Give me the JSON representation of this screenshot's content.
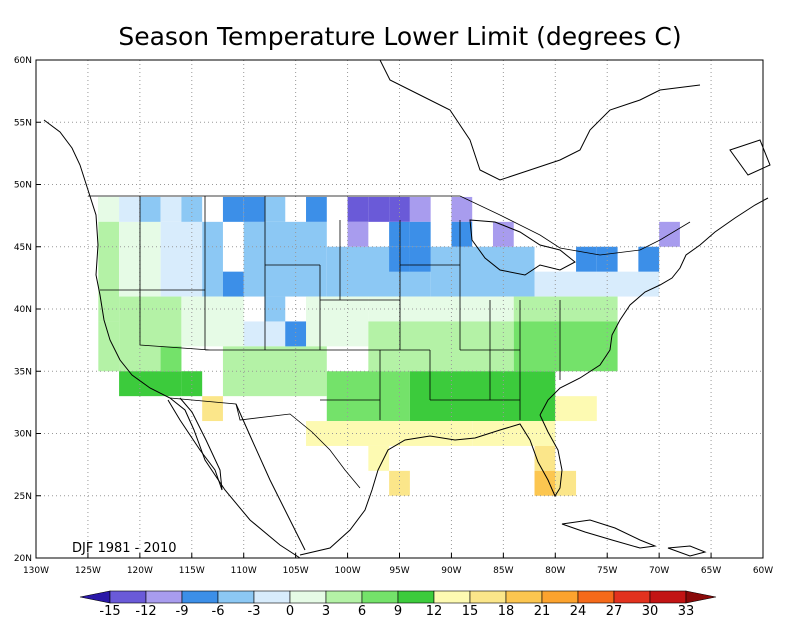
{
  "title": "Season Temperature Lower Limit (degrees C)",
  "period_label": "DJF 1981 - 2010",
  "axes": {
    "lon_ticks": [
      "130W",
      "125W",
      "120W",
      "115W",
      "110W",
      "105W",
      "100W",
      "95W",
      "90W",
      "85W",
      "80W",
      "75W",
      "70W",
      "65W",
      "60W"
    ],
    "lat_ticks": [
      "20N",
      "25N",
      "30N",
      "35N",
      "40N",
      "45N",
      "50N",
      "55N",
      "60N"
    ]
  },
  "colorbar": {
    "labels": [
      "-15",
      "-12",
      "-9",
      "-6",
      "-3",
      "0",
      "3",
      "6",
      "9",
      "12",
      "15",
      "18",
      "21",
      "24",
      "27",
      "30",
      "33"
    ],
    "colors": [
      "#2a18a8",
      "#6a5ad8",
      "#a89cee",
      "#3c8fe8",
      "#8cc8f4",
      "#d8ecfc",
      "#e6fbe6",
      "#b4f2a6",
      "#74e26a",
      "#3ccb3c",
      "#fdfab2",
      "#fbe68a",
      "#fcc650",
      "#fca32e",
      "#f56a1a",
      "#e2321e",
      "#c21414",
      "#8a0a0a"
    ]
  },
  "chart_data": {
    "type": "heatmap",
    "title": "Season Temperature Lower Limit (degrees C)",
    "season": "DJF 1981 - 2010",
    "lon_range": [
      -130,
      -60
    ],
    "lat_range": [
      20,
      60
    ],
    "lon_ticks": [
      -130,
      -125,
      -120,
      -115,
      -110,
      -105,
      -100,
      -95,
      -90,
      -85,
      -80,
      -75,
      -70,
      -65,
      -60
    ],
    "lat_ticks": [
      20,
      25,
      30,
      35,
      40,
      45,
      50,
      55,
      60
    ],
    "grid": true,
    "colorbar_levels": [
      -15,
      -12,
      -9,
      -6,
      -3,
      0,
      3,
      6,
      9,
      12,
      15,
      18,
      21,
      24,
      27,
      30,
      33
    ],
    "cell_size_deg": 2,
    "cells": [
      {
        "lon_w": -124,
        "lat_s": 47,
        "band": "0 to 3"
      },
      {
        "lon_w": -122,
        "lat_s": 47,
        "band": "-3 to 0"
      },
      {
        "lon_w": -120,
        "lat_s": 47,
        "band": "-6 to -3"
      },
      {
        "lon_w": -118,
        "lat_s": 47,
        "band": "-3 to 0"
      },
      {
        "lon_w": -116,
        "lat_s": 47,
        "band": "-6 to -3"
      },
      {
        "lon_w": -112,
        "lat_s": 47,
        "band": "-9 to -6"
      },
      {
        "lon_w": -110,
        "lat_s": 47,
        "band": "-9 to -6"
      },
      {
        "lon_w": -108,
        "lat_s": 47,
        "band": "-6 to -3"
      },
      {
        "lon_w": -104,
        "lat_s": 47,
        "band": "-9 to -6"
      },
      {
        "lon_w": -100,
        "lat_s": 47,
        "band": "-15 to -12"
      },
      {
        "lon_w": -98,
        "lat_s": 47,
        "band": "-15 to -12"
      },
      {
        "lon_w": -96,
        "lat_s": 47,
        "band": "-15 to -12"
      },
      {
        "lon_w": -94,
        "lat_s": 47,
        "band": "-12 to -9"
      },
      {
        "lon_w": -90,
        "lat_s": 47,
        "band": "-12 to -9"
      },
      {
        "lon_w": -100,
        "lat_s": 45,
        "band": "-12 to -9"
      },
      {
        "lon_w": -96,
        "lat_s": 45,
        "band": "-9 to -6"
      },
      {
        "lon_w": -94,
        "lat_s": 45,
        "band": "-9 to -6"
      },
      {
        "lon_w": -90,
        "lat_s": 45,
        "band": "-9 to -6"
      },
      {
        "lon_w": -86,
        "lat_s": 45,
        "band": "-12 to -9"
      },
      {
        "lon_w": -70,
        "lat_s": 45,
        "band": "-12 to -9"
      },
      {
        "lon_w": -96,
        "lat_s": 43,
        "band": "-9 to -6"
      },
      {
        "lon_w": -94,
        "lat_s": 43,
        "band": "-9 to -6"
      },
      {
        "lon_w": -78,
        "lat_s": 43,
        "band": "-9 to -6"
      },
      {
        "lon_w": -76,
        "lat_s": 43,
        "band": "-9 to -6"
      },
      {
        "lon_w": -72,
        "lat_s": 43,
        "band": "-9 to -6"
      },
      {
        "lon_w": -112,
        "lat_s": 41,
        "band": "-9 to -6"
      },
      {
        "lon_w": -108,
        "lat_s": 39,
        "band": "-6 to -3"
      },
      {
        "lon_w": -106,
        "lat_s": 37,
        "band": "-9 to -6"
      },
      {
        "lon_w": -118,
        "lat_s": 35,
        "band": "6 to 9"
      },
      {
        "lon_w": -116,
        "lat_s": 33,
        "band": "9 to 12"
      },
      {
        "lon_w": -114,
        "lat_s": 31,
        "band": "15 to 18"
      },
      {
        "lon_w": -98,
        "lat_s": 27,
        "band": "12 to 15"
      },
      {
        "lon_w": -96,
        "lat_s": 25,
        "band": "15 to 18"
      },
      {
        "lon_w": -82,
        "lat_s": 27,
        "band": "15 to 18"
      },
      {
        "lon_w": -82,
        "lat_s": 25,
        "band": "18 to 21"
      },
      {
        "lon_w": -80,
        "lat_s": 25,
        "band": "15 to 18"
      }
    ]
  }
}
